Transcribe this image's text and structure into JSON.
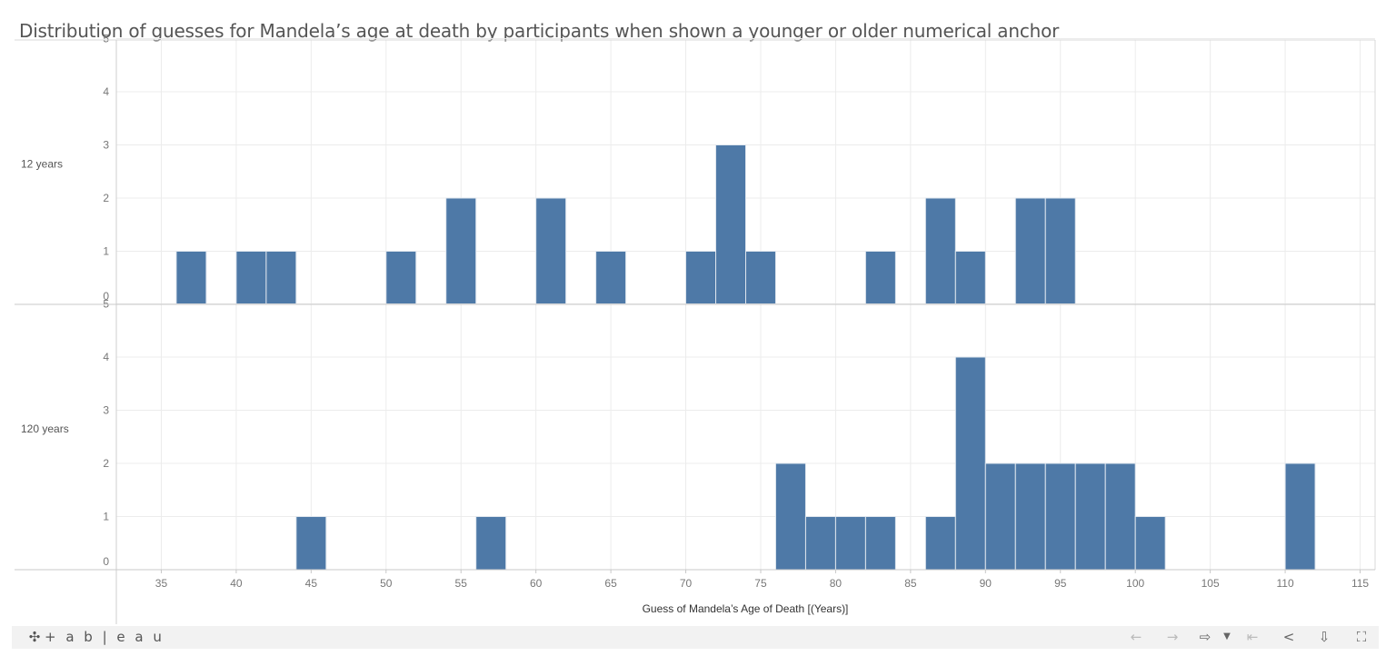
{
  "title": "Distribution of guesses for Mandela’s age at death by participants when shown a younger or older numerical anchor",
  "chart_data": {
    "type": "bar",
    "xlabel": "Guess of Mandela’s Age of Death [(Years)]",
    "ylabel": "",
    "bin_width": 2,
    "xlim": [
      32,
      116
    ],
    "xticks": [
      35,
      40,
      45,
      50,
      55,
      60,
      65,
      70,
      75,
      80,
      85,
      90,
      95,
      100,
      105,
      110,
      115
    ],
    "ylim": [
      0,
      5
    ],
    "yticks": [
      0,
      1,
      2,
      3,
      4,
      5
    ],
    "grid": true,
    "bar_color": "#4e79a7",
    "panels": [
      {
        "label": "12 years",
        "bins": [
          {
            "x": 36,
            "count": 1
          },
          {
            "x": 40,
            "count": 1
          },
          {
            "x": 42,
            "count": 1
          },
          {
            "x": 50,
            "count": 1
          },
          {
            "x": 54,
            "count": 2
          },
          {
            "x": 60,
            "count": 2
          },
          {
            "x": 64,
            "count": 1
          },
          {
            "x": 70,
            "count": 1
          },
          {
            "x": 72,
            "count": 3
          },
          {
            "x": 74,
            "count": 1
          },
          {
            "x": 82,
            "count": 1
          },
          {
            "x": 86,
            "count": 2
          },
          {
            "x": 88,
            "count": 1
          },
          {
            "x": 92,
            "count": 2
          },
          {
            "x": 94,
            "count": 2
          }
        ]
      },
      {
        "label": "120 years",
        "bins": [
          {
            "x": 44,
            "count": 1
          },
          {
            "x": 56,
            "count": 1
          },
          {
            "x": 76,
            "count": 2
          },
          {
            "x": 78,
            "count": 1
          },
          {
            "x": 80,
            "count": 1
          },
          {
            "x": 82,
            "count": 1
          },
          {
            "x": 86,
            "count": 1
          },
          {
            "x": 88,
            "count": 4
          },
          {
            "x": 90,
            "count": 2
          },
          {
            "x": 92,
            "count": 2
          },
          {
            "x": 94,
            "count": 2
          },
          {
            "x": 96,
            "count": 2
          },
          {
            "x": 98,
            "count": 2
          },
          {
            "x": 100,
            "count": 1
          },
          {
            "x": 110,
            "count": 2
          }
        ]
      }
    ]
  },
  "footer": {
    "logo_text": "+ a b | e a u",
    "icons": [
      "undo-icon",
      "redo-icon",
      "revert-icon",
      "dropdown-icon",
      "reset-icon",
      "share-icon",
      "download-icon",
      "fullscreen-icon"
    ]
  }
}
